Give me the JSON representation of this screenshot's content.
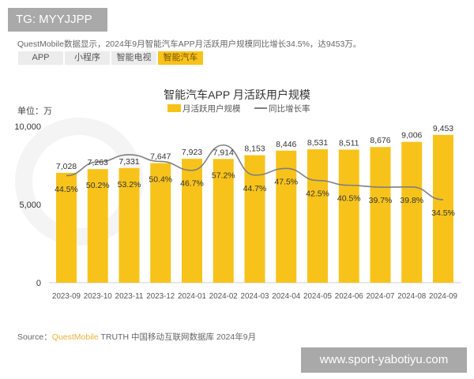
{
  "badge_top": "TG: MYYJJPP",
  "description": "QuestMobile数据显示，2024年9月智能汽车APP月活跃用户规模同比增长34.5%，达9453万。",
  "tabs": [
    {
      "label": "APP"
    },
    {
      "label": "小程序"
    },
    {
      "label": "智能电视"
    },
    {
      "label": "智能汽车"
    }
  ],
  "active_tab": "智能汽车",
  "footer": {
    "prefix": "Source：",
    "brand": "QuestMobile",
    "rest": " TRUTH 中国移动互联网数据库 2024年9月"
  },
  "badge_bottom": "www.sport-yabotiyu.com",
  "colors": {
    "bar": "#f7c31b",
    "line": "#7f7f7f",
    "accent": "#f7c31b"
  },
  "chart_data": {
    "type": "bar",
    "title": "智能汽车APP 月活跃用户规模",
    "unit_label": "单位：万",
    "legend": [
      "月活跃用户规模",
      "同比增长率"
    ],
    "legend_position": "top-center",
    "categories": [
      "2023-09",
      "2023-10",
      "2023-11",
      "2023-12",
      "2024-01",
      "2024-02",
      "2024-03",
      "2024-04",
      "2024-05",
      "2024-06",
      "2024-07",
      "2024-08",
      "2024-09"
    ],
    "series": [
      {
        "name": "月活跃用户规模",
        "type": "bar",
        "values": [
          7028,
          7263,
          7331,
          7647,
          7923,
          7914,
          8153,
          8446,
          8531,
          8511,
          8676,
          9006,
          9453
        ],
        "labels": [
          "7,028",
          "7,263",
          "7,331",
          "7,647",
          "7,923",
          "7,914",
          "8,153",
          "8,446",
          "8,531",
          "8,511",
          "8,676",
          "9,006",
          "9,453"
        ]
      },
      {
        "name": "同比增长率",
        "type": "line",
        "values": [
          44.5,
          50.2,
          53.2,
          50.4,
          46.7,
          57.2,
          44.7,
          47.5,
          42.5,
          40.5,
          39.7,
          39.8,
          34.5
        ],
        "labels": [
          "44.5%",
          "50.2%",
          "53.2%",
          "50.4%",
          "46.7%",
          "57.2%",
          "44.7%",
          "47.5%",
          "42.5%",
          "40.5%",
          "39.7%",
          "39.8%",
          "34.5%"
        ]
      }
    ],
    "yticks": [
      {
        "v": 0,
        "label": "0"
      },
      {
        "v": 5000,
        "label": "5,000"
      },
      {
        "v": 10000,
        "label": "10,000"
      }
    ],
    "ylim": [
      0,
      10000
    ],
    "y2lim": [
      0,
      65
    ],
    "grid": false
  }
}
